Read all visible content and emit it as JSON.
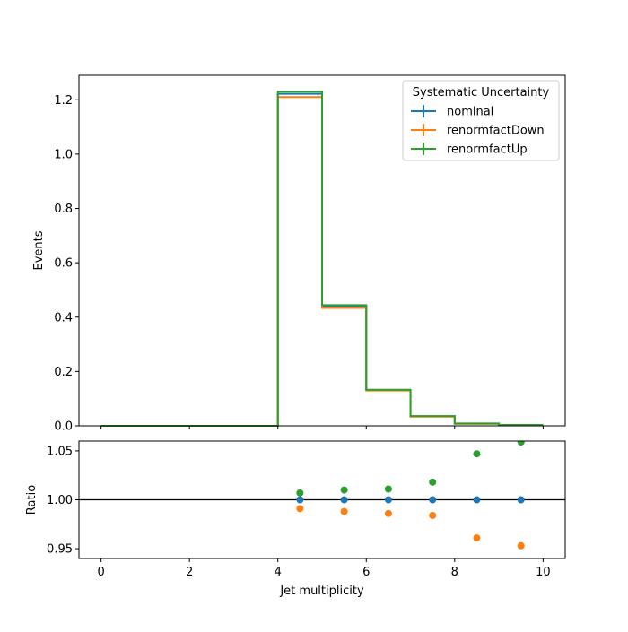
{
  "chart_data": {
    "type": "step histogram with ratio panel",
    "bin_edges": [
      0,
      1,
      2,
      3,
      4,
      5,
      6,
      7,
      8,
      9,
      10
    ],
    "main_panel": {
      "ylabel": "Events",
      "xlim": [
        -0.5,
        10.5
      ],
      "ylim": [
        0,
        1.29
      ],
      "yticks": [
        0.0,
        0.2,
        0.4,
        0.6,
        0.8,
        1.0,
        1.2
      ],
      "ytick_labels": [
        "0.0",
        "0.2",
        "0.4",
        "0.6",
        "0.8",
        "1.0",
        "1.2"
      ],
      "series": [
        {
          "name": "nominal",
          "color": "#1f77b4",
          "values": [
            0,
            0,
            0,
            0,
            1.222,
            0.44,
            0.132,
            0.035,
            0.008,
            0.003
          ]
        },
        {
          "name": "renormfactDown",
          "color": "#ff7f0e",
          "values": [
            0,
            0,
            0,
            0,
            1.21,
            0.434,
            0.13,
            0.034,
            0.0075,
            0.0028
          ]
        },
        {
          "name": "renormfactUp",
          "color": "#2ca02c",
          "values": [
            0,
            0,
            0,
            0,
            1.23,
            0.444,
            0.133,
            0.036,
            0.0085,
            0.0032
          ]
        }
      ]
    },
    "ratio_panel": {
      "ylabel": "Ratio",
      "xlabel": "Jet multiplicity",
      "xlim": [
        -0.5,
        10.5
      ],
      "ylim": [
        0.94,
        1.06
      ],
      "yticks": [
        0.95,
        1.0,
        1.05
      ],
      "ytick_labels": [
        "0.95",
        "1.00",
        "1.05"
      ],
      "xticks": [
        0,
        2,
        4,
        6,
        8,
        10
      ],
      "xtick_labels": [
        "0",
        "2",
        "4",
        "6",
        "8",
        "10"
      ],
      "reference_line": 1.0,
      "points_x": [
        4.5,
        5.5,
        6.5,
        7.5,
        8.5,
        9.5
      ],
      "series": [
        {
          "name": "nominal",
          "color": "#1f77b4",
          "values": [
            1.0,
            1.0,
            1.0,
            1.0,
            1.0,
            1.0
          ]
        },
        {
          "name": "renormfactDown",
          "color": "#ff7f0e",
          "values": [
            0.991,
            0.988,
            0.986,
            0.984,
            0.961,
            0.953
          ]
        },
        {
          "name": "renormfactUp",
          "color": "#2ca02c",
          "values": [
            1.007,
            1.01,
            1.011,
            1.018,
            1.047,
            1.059
          ]
        }
      ]
    },
    "legend": {
      "title": "Systematic Uncertainty",
      "placement": "top-right",
      "entries": [
        "nominal",
        "renormfactDown",
        "renormfactUp"
      ]
    }
  }
}
